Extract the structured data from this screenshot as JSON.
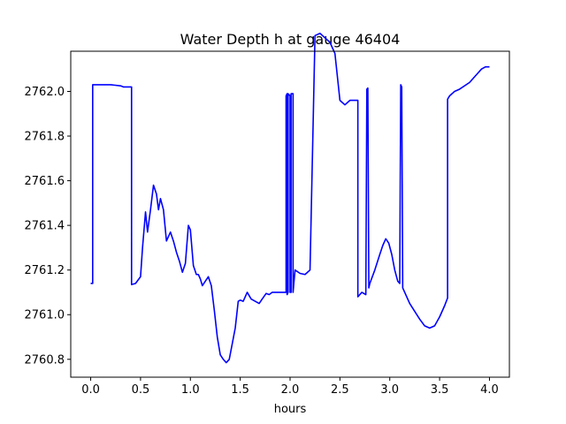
{
  "chart_data": {
    "type": "line",
    "title": "Water Depth h at gauge 46404",
    "xlabel": "hours",
    "ylabel": "",
    "xlim": [
      -0.2,
      4.2
    ],
    "ylim": [
      2760.72,
      2762.18
    ],
    "xticks": [
      0.0,
      0.5,
      1.0,
      1.5,
      2.0,
      2.5,
      3.0,
      3.5,
      4.0
    ],
    "xtick_labels": [
      "0.0",
      "0.5",
      "1.0",
      "1.5",
      "2.0",
      "2.5",
      "3.0",
      "3.5",
      "4.0"
    ],
    "yticks": [
      2760.8,
      2761.0,
      2761.2,
      2761.4,
      2761.6,
      2761.8,
      2762.0
    ],
    "ytick_labels": [
      "2760.8",
      "2761.0",
      "2761.2",
      "2761.4",
      "2761.6",
      "2761.8",
      "2762.0"
    ],
    "grid": false,
    "series": [
      {
        "name": "",
        "color": "#0000ff",
        "x": [
          0.0,
          0.02,
          0.02,
          0.1,
          0.2,
          0.3,
          0.33,
          0.41,
          0.41,
          0.45,
          0.5,
          0.52,
          0.55,
          0.57,
          0.6,
          0.63,
          0.66,
          0.68,
          0.7,
          0.73,
          0.76,
          0.78,
          0.8,
          0.83,
          0.86,
          0.89,
          0.92,
          0.95,
          0.98,
          1.0,
          1.03,
          1.06,
          1.08,
          1.1,
          1.12,
          1.15,
          1.18,
          1.21,
          1.24,
          1.27,
          1.3,
          1.33,
          1.36,
          1.39,
          1.42,
          1.45,
          1.48,
          1.5,
          1.53,
          1.57,
          1.61,
          1.65,
          1.69,
          1.72,
          1.76,
          1.79,
          1.82,
          1.85,
          1.88,
          1.91,
          1.94,
          1.96,
          1.96,
          1.97,
          1.97,
          1.98,
          1.98,
          2.0,
          2.0,
          2.01,
          2.01,
          2.03,
          2.03,
          2.05,
          2.1,
          2.15,
          2.2,
          2.25,
          2.3,
          2.35,
          2.4,
          2.45,
          2.5,
          2.55,
          2.6,
          2.65,
          2.68,
          2.68,
          2.72,
          2.76,
          2.77,
          2.78,
          2.79,
          2.8,
          2.85,
          2.9,
          2.93,
          2.96,
          2.99,
          3.02,
          3.05,
          3.08,
          3.1,
          3.11,
          3.12,
          3.13,
          3.14,
          3.2,
          3.3,
          3.35,
          3.4,
          3.45,
          3.5,
          3.55,
          3.58,
          3.58,
          3.6,
          3.65,
          3.7,
          3.8,
          3.88,
          3.92,
          3.96,
          4.0
        ],
        "y": [
          2761.14,
          2761.14,
          2762.03,
          2762.03,
          2762.03,
          2762.025,
          2762.02,
          2762.02,
          2761.135,
          2761.14,
          2761.17,
          2761.3,
          2761.46,
          2761.37,
          2761.47,
          2761.58,
          2761.54,
          2761.47,
          2761.52,
          2761.47,
          2761.33,
          2761.35,
          2761.37,
          2761.33,
          2761.28,
          2761.24,
          2761.19,
          2761.23,
          2761.4,
          2761.38,
          2761.22,
          2761.18,
          2761.18,
          2761.16,
          2761.13,
          2761.15,
          2761.17,
          2761.13,
          2761.02,
          2760.9,
          2760.82,
          2760.8,
          2760.785,
          2760.8,
          2760.87,
          2760.94,
          2761.06,
          2761.065,
          2761.06,
          2761.1,
          2761.07,
          2761.06,
          2761.05,
          2761.07,
          2761.095,
          2761.09,
          2761.1,
          2761.1,
          2761.1,
          2761.1,
          2761.1,
          2761.1,
          2761.98,
          2761.99,
          2761.09,
          2761.1,
          2761.99,
          2761.98,
          2761.1,
          2761.1,
          2761.99,
          2761.99,
          2761.1,
          2761.2,
          2761.185,
          2761.18,
          2761.2,
          2762.25,
          2762.26,
          2762.24,
          2762.22,
          2762.17,
          2761.96,
          2761.94,
          2761.96,
          2761.96,
          2761.96,
          2761.08,
          2761.1,
          2761.09,
          2762.01,
          2762.015,
          2761.12,
          2761.14,
          2761.2,
          2761.27,
          2761.31,
          2761.34,
          2761.32,
          2761.27,
          2761.2,
          2761.15,
          2761.14,
          2762.03,
          2762.02,
          2761.12,
          2761.11,
          2761.05,
          2760.98,
          2760.95,
          2760.94,
          2760.95,
          2760.99,
          2761.04,
          2761.075,
          2761.965,
          2761.98,
          2762.0,
          2762.01,
          2762.04,
          2762.08,
          2762.1,
          2762.11,
          2762.11
        ]
      }
    ]
  }
}
